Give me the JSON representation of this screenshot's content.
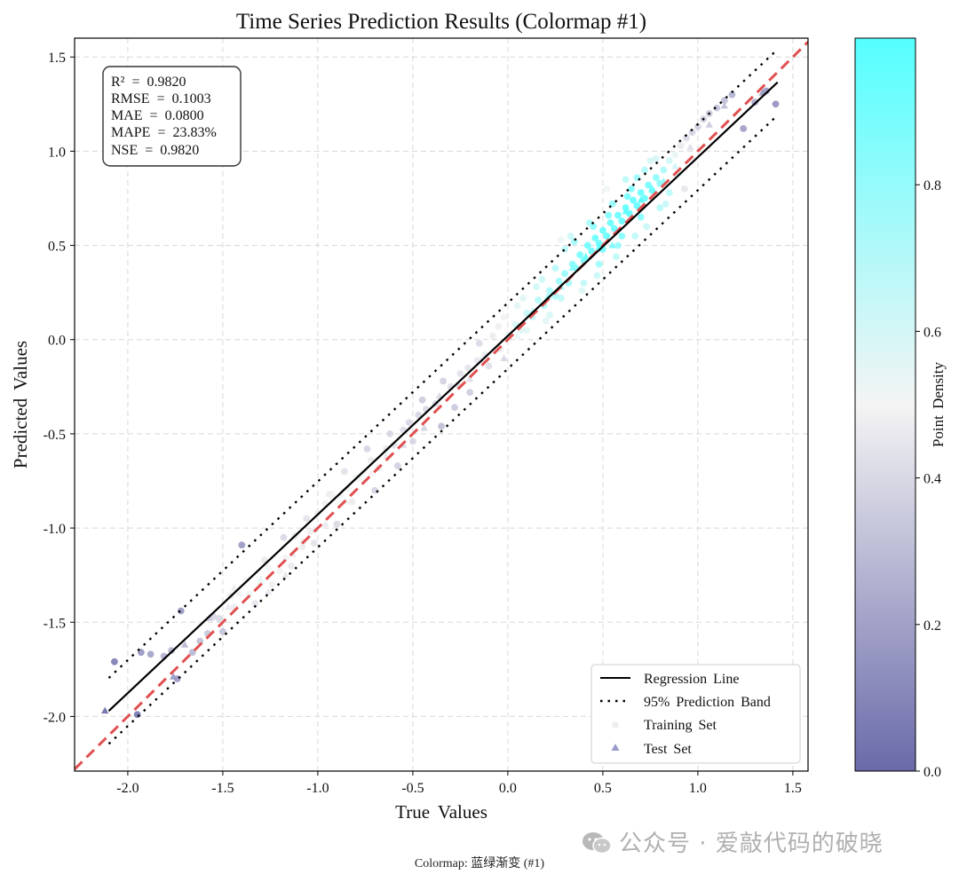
{
  "chart_data": {
    "type": "scatter",
    "title": "Time Series Prediction Results (Colormap #1)",
    "xlabel": "True Values",
    "ylabel": "Predicted Values",
    "xlim": [
      -2.28,
      1.58
    ],
    "ylim": [
      -2.29,
      1.6
    ],
    "xticks": [
      -2.0,
      -1.5,
      -1.0,
      -0.5,
      0.0,
      0.5,
      1.0,
      1.5
    ],
    "xtick_labels": [
      "-2.0",
      "-1.5",
      "-1.0",
      "-0.5",
      "0.0",
      "0.5",
      "1.0",
      "1.5"
    ],
    "yticks": [
      -2.0,
      -1.5,
      -1.0,
      -0.5,
      0.0,
      0.5,
      1.0,
      1.5
    ],
    "ytick_labels": [
      "-2.0",
      "-1.5",
      "-1.0",
      "-0.5",
      "0.0",
      "0.5",
      "1.0",
      "1.5"
    ],
    "grid": true,
    "regression_line": {
      "slope": 0.948,
      "intercept": 0.02,
      "x_range": [
        -2.1,
        1.42
      ],
      "label": "Regression Line"
    },
    "prediction_band": {
      "offset": 0.175,
      "label": "95% Prediction Band"
    },
    "identity_line": {
      "slope": 1.0,
      "intercept": 0.0,
      "color": "#e05050"
    },
    "metrics": [
      "R²  =  0.9820",
      "RMSE  =  0.1003",
      "MAE  =  0.0800",
      "MAPE  =  23.83%",
      "NSE  =  0.9820"
    ],
    "legend": {
      "position": "lower-right",
      "entries": [
        "Regression Line",
        "95% Prediction Band",
        "Training Set",
        "Test Set"
      ]
    },
    "colorbar": {
      "label": "Point Density",
      "range": [
        0.0,
        1.0
      ],
      "ticks": [
        0.0,
        0.2,
        0.4,
        0.6,
        0.8
      ],
      "tick_labels": [
        "0.0",
        "0.2",
        "0.4",
        "0.6",
        "0.8"
      ],
      "colors": [
        "#6a6aaa",
        "#f4f4f4",
        "#55ffff"
      ]
    },
    "series": [
      {
        "name": "Training Set",
        "marker": "circle",
        "points": [
          [
            -2.07,
            -1.71
          ],
          [
            -1.93,
            -1.66
          ],
          [
            -1.88,
            -1.67
          ],
          [
            -1.81,
            -1.68
          ],
          [
            -1.74,
            -1.8
          ],
          [
            -1.72,
            -1.44
          ],
          [
            -1.62,
            -1.6
          ],
          [
            -1.55,
            -1.47
          ],
          [
            -1.5,
            -1.55
          ],
          [
            -1.46,
            -1.36
          ],
          [
            -1.42,
            -1.34
          ],
          [
            -1.4,
            -1.09
          ],
          [
            -1.36,
            -1.35
          ],
          [
            -1.33,
            -1.4
          ],
          [
            -1.3,
            -1.29
          ],
          [
            -1.26,
            -1.21
          ],
          [
            -1.2,
            -1.23
          ],
          [
            -1.17,
            -1.16
          ],
          [
            -1.12,
            -1.04
          ],
          [
            -1.08,
            -1.1
          ],
          [
            -1.04,
            -1.02
          ],
          [
            -1.0,
            -0.92
          ],
          [
            -0.96,
            -0.87
          ],
          [
            -0.92,
            -0.84
          ],
          [
            -0.88,
            -0.83
          ],
          [
            -0.84,
            -0.79
          ],
          [
            -0.8,
            -0.73
          ],
          [
            -0.76,
            -0.7
          ],
          [
            -0.72,
            -0.64
          ],
          [
            -0.68,
            -0.68
          ],
          [
            -0.64,
            -0.58
          ],
          [
            -0.6,
            -0.56
          ],
          [
            -0.55,
            -0.48
          ],
          [
            -0.52,
            -0.44
          ],
          [
            -0.47,
            -0.4
          ],
          [
            -0.43,
            -0.37
          ],
          [
            -0.38,
            -0.34
          ],
          [
            -0.34,
            -0.22
          ],
          [
            -0.3,
            -0.25
          ],
          [
            -0.25,
            -0.18
          ],
          [
            -0.21,
            -0.15
          ],
          [
            -0.16,
            -0.11
          ],
          [
            -0.12,
            -0.08
          ],
          [
            -0.08,
            0.02
          ],
          [
            -0.04,
            -0.05
          ],
          [
            0.0,
            0.02
          ],
          [
            0.04,
            0.08
          ],
          [
            0.07,
            0.05
          ],
          [
            0.1,
            0.14
          ],
          [
            0.13,
            0.12
          ],
          [
            0.16,
            0.21
          ],
          [
            0.19,
            0.18
          ],
          [
            0.22,
            0.26
          ],
          [
            0.25,
            0.23
          ],
          [
            0.27,
            0.31
          ],
          [
            0.3,
            0.35
          ],
          [
            0.32,
            0.3
          ],
          [
            0.34,
            0.4
          ],
          [
            0.36,
            0.38
          ],
          [
            0.38,
            0.45
          ],
          [
            0.4,
            0.42
          ],
          [
            0.42,
            0.5
          ],
          [
            0.44,
            0.47
          ],
          [
            0.46,
            0.54
          ],
          [
            0.48,
            0.51
          ],
          [
            0.5,
            0.58
          ],
          [
            0.52,
            0.55
          ],
          [
            0.54,
            0.62
          ],
          [
            0.56,
            0.59
          ],
          [
            0.58,
            0.66
          ],
          [
            0.6,
            0.63
          ],
          [
            0.62,
            0.7
          ],
          [
            0.64,
            0.67
          ],
          [
            0.66,
            0.74
          ],
          [
            0.68,
            0.71
          ],
          [
            0.7,
            0.78
          ],
          [
            0.72,
            0.75
          ],
          [
            0.74,
            0.82
          ],
          [
            0.76,
            0.79
          ],
          [
            0.78,
            0.86
          ],
          [
            0.8,
            0.83
          ],
          [
            0.82,
            0.9
          ],
          [
            0.85,
            0.95
          ],
          [
            0.88,
            0.98
          ],
          [
            0.91,
            1.03
          ],
          [
            0.94,
            1.07
          ],
          [
            0.97,
            1.1
          ],
          [
            1.0,
            1.13
          ],
          [
            1.03,
            1.17
          ],
          [
            1.06,
            1.2
          ],
          [
            1.1,
            1.23
          ],
          [
            1.14,
            1.27
          ],
          [
            1.18,
            1.3
          ],
          [
            1.24,
            1.12
          ],
          [
            1.3,
            1.26
          ],
          [
            1.36,
            1.32
          ],
          [
            1.41,
            1.25
          ],
          [
            0.45,
            0.6
          ],
          [
            0.5,
            0.48
          ],
          [
            0.55,
            0.72
          ],
          [
            0.6,
            0.55
          ],
          [
            0.65,
            0.8
          ],
          [
            0.7,
            0.65
          ],
          [
            0.48,
            0.4
          ],
          [
            0.53,
            0.66
          ],
          [
            0.58,
            0.5
          ],
          [
            0.63,
            0.76
          ],
          [
            0.35,
            0.52
          ],
          [
            0.4,
            0.3
          ],
          [
            0.75,
            0.95
          ],
          [
            0.8,
            0.7
          ],
          [
            0.85,
            0.78
          ],
          [
            0.9,
            0.88
          ],
          [
            0.3,
            0.48
          ],
          [
            0.28,
            0.22
          ],
          [
            0.2,
            0.1
          ],
          [
            0.15,
            0.28
          ],
          [
            0.1,
            0.05
          ],
          [
            0.05,
            0.18
          ],
          [
            -0.05,
            0.07
          ],
          [
            -0.1,
            -0.14
          ],
          [
            0.28,
            0.53
          ],
          [
            0.33,
            0.55
          ],
          [
            0.43,
            0.62
          ],
          [
            0.52,
            0.8
          ],
          [
            0.62,
            0.85
          ],
          [
            0.68,
            0.86
          ],
          [
            0.72,
            0.9
          ],
          [
            0.78,
            0.96
          ],
          [
            0.39,
            0.26
          ],
          [
            0.47,
            0.34
          ],
          [
            0.57,
            0.44
          ],
          [
            0.67,
            0.55
          ],
          [
            0.73,
            0.6
          ],
          [
            0.83,
            0.72
          ],
          [
            0.93,
            0.8
          ],
          [
            0.25,
            0.38
          ],
          [
            0.22,
            0.13
          ],
          [
            0.18,
            0.32
          ],
          [
            0.08,
            0.22
          ],
          [
            -0.02,
            0.12
          ],
          [
            -0.15,
            -0.02
          ],
          [
            -0.2,
            -0.28
          ],
          [
            -0.28,
            -0.36
          ],
          [
            -0.35,
            -0.46
          ],
          [
            -0.45,
            -0.32
          ],
          [
            -0.5,
            -0.54
          ],
          [
            -0.58,
            -0.67
          ],
          [
            -0.62,
            -0.5
          ],
          [
            -0.7,
            -0.8
          ],
          [
            -0.74,
            -0.58
          ],
          [
            -0.82,
            -0.86
          ],
          [
            -0.86,
            -0.7
          ],
          [
            -0.9,
            -0.98
          ],
          [
            -0.94,
            -0.82
          ],
          [
            -1.02,
            -1.08
          ],
          [
            -1.06,
            -0.95
          ],
          [
            -1.14,
            -1.2
          ],
          [
            -1.18,
            -1.05
          ],
          [
            -1.24,
            -1.3
          ],
          [
            -1.28,
            -1.17
          ],
          [
            -1.38,
            -1.28
          ],
          [
            -1.44,
            -1.42
          ],
          [
            -1.52,
            -1.48
          ],
          [
            -1.58,
            -1.56
          ],
          [
            -1.66,
            -1.66
          ],
          [
            -1.77,
            -1.65
          ],
          [
            -1.95,
            -1.99
          ]
        ]
      },
      {
        "name": "Test Set",
        "marker": "triangle",
        "points": [
          [
            -2.12,
            -1.97
          ],
          [
            -1.76,
            -1.79
          ],
          [
            -1.7,
            -1.62
          ],
          [
            -1.57,
            -1.48
          ],
          [
            -1.47,
            -1.42
          ],
          [
            -1.44,
            -1.32
          ],
          [
            -1.41,
            -1.35
          ],
          [
            -1.3,
            -1.27
          ],
          [
            -1.26,
            -1.34
          ],
          [
            -1.17,
            -1.25
          ],
          [
            -1.13,
            -1.14
          ],
          [
            -1.08,
            -1.07
          ],
          [
            -1.02,
            -1.01
          ],
          [
            -0.96,
            -0.98
          ],
          [
            -0.92,
            -0.82
          ],
          [
            -0.85,
            -0.86
          ],
          [
            -0.78,
            -0.74
          ],
          [
            -0.72,
            -0.71
          ],
          [
            -0.64,
            -0.62
          ],
          [
            -0.55,
            -0.56
          ],
          [
            -0.44,
            -0.47
          ],
          [
            -0.36,
            -0.3
          ],
          [
            -0.26,
            -0.24
          ],
          [
            -0.2,
            -0.21
          ],
          [
            -0.14,
            -0.11
          ],
          [
            -0.02,
            -0.1
          ],
          [
            0.05,
            0.02
          ],
          [
            0.13,
            0.15
          ],
          [
            0.21,
            0.23
          ],
          [
            0.28,
            0.28
          ],
          [
            0.34,
            0.38
          ],
          [
            0.41,
            0.44
          ],
          [
            0.48,
            0.49
          ],
          [
            0.55,
            0.5
          ],
          [
            0.62,
            0.68
          ],
          [
            0.7,
            0.74
          ],
          [
            0.76,
            0.8
          ],
          [
            0.82,
            0.84
          ],
          [
            0.88,
            0.92
          ],
          [
            0.96,
            1.02
          ],
          [
            1.06,
            1.14
          ],
          [
            1.14,
            1.24
          ],
          [
            1.34,
            1.31
          ]
        ]
      }
    ]
  },
  "caption": "Colormap:  蓝绿渐变  (#1)",
  "watermark": "公众号 · 爱敲代码的破晓"
}
